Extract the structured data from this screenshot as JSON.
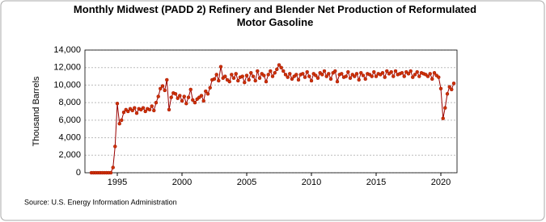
{
  "chart_data": {
    "type": "line",
    "title": "Monthly Midwest (PADD 2) Refinery and Blender Net Production of Reformulated Motor Gasoline",
    "y_label": "Thousand Barrels",
    "source": "Source: U.S. Energy Information Administration",
    "x": [
      1993,
      1993.17,
      1993.33,
      1993.5,
      1993.67,
      1993.83,
      1994,
      1994.17,
      1994.33,
      1994.5,
      1994.67,
      1994.83,
      1995,
      1995.17,
      1995.33,
      1995.5,
      1995.67,
      1995.83,
      1996,
      1996.17,
      1996.33,
      1996.5,
      1996.67,
      1996.83,
      1997,
      1997.17,
      1997.33,
      1997.5,
      1997.67,
      1997.83,
      1998,
      1998.17,
      1998.33,
      1998.5,
      1998.67,
      1998.83,
      1999,
      1999.17,
      1999.33,
      1999.5,
      1999.67,
      1999.83,
      2000,
      2000.17,
      2000.33,
      2000.5,
      2000.67,
      2000.83,
      2001,
      2001.17,
      2001.33,
      2001.5,
      2001.67,
      2001.83,
      2002,
      2002.17,
      2002.33,
      2002.5,
      2002.67,
      2002.83,
      2003,
      2003.17,
      2003.33,
      2003.5,
      2003.67,
      2003.83,
      2004,
      2004.17,
      2004.33,
      2004.5,
      2004.67,
      2004.83,
      2005,
      2005.17,
      2005.33,
      2005.5,
      2005.67,
      2005.83,
      2006,
      2006.17,
      2006.33,
      2006.5,
      2006.67,
      2006.83,
      2007,
      2007.17,
      2007.33,
      2007.5,
      2007.67,
      2007.83,
      2008,
      2008.17,
      2008.33,
      2008.5,
      2008.67,
      2008.83,
      2009,
      2009.17,
      2009.33,
      2009.5,
      2009.67,
      2009.83,
      2010,
      2010.17,
      2010.33,
      2010.5,
      2010.67,
      2010.83,
      2011,
      2011.17,
      2011.33,
      2011.5,
      2011.67,
      2011.83,
      2012,
      2012.17,
      2012.33,
      2012.5,
      2012.67,
      2012.83,
      2013,
      2013.17,
      2013.33,
      2013.5,
      2013.67,
      2013.83,
      2014,
      2014.17,
      2014.33,
      2014.5,
      2014.67,
      2014.83,
      2015,
      2015.17,
      2015.33,
      2015.5,
      2015.67,
      2015.83,
      2016,
      2016.17,
      2016.33,
      2016.5,
      2016.67,
      2016.83,
      2017,
      2017.17,
      2017.33,
      2017.5,
      2017.67,
      2017.83,
      2018,
      2018.17,
      2018.33,
      2018.5,
      2018.67,
      2018.83,
      2019,
      2019.17,
      2019.33,
      2019.5,
      2019.67,
      2019.83,
      2020,
      2020.17,
      2020.33,
      2020.5,
      2020.67,
      2020.83,
      2021
    ],
    "series": [
      {
        "line_color": "#990000",
        "color": "#cc3300",
        "values": [
          0,
          0,
          0,
          0,
          0,
          0,
          0,
          0,
          0,
          0,
          600,
          3000,
          7900,
          5600,
          6000,
          6900,
          7200,
          7000,
          7300,
          7100,
          7400,
          6800,
          7300,
          7200,
          7400,
          7000,
          7300,
          7200,
          7600,
          7100,
          8000,
          8700,
          9600,
          9900,
          9400,
          10600,
          7200,
          8600,
          9100,
          9000,
          8500,
          8800,
          8200,
          8700,
          7900,
          8600,
          9500,
          8300,
          8000,
          8400,
          8600,
          8800,
          8200,
          9300,
          9000,
          9700,
          10600,
          10700,
          11200,
          10500,
          12100,
          10800,
          11000,
          10600,
          10400,
          11200,
          10800,
          11300,
          10500,
          10900,
          11000,
          10300,
          11100,
          10600,
          11400,
          11000,
          10500,
          11600,
          10800,
          11300,
          11100,
          10400,
          11200,
          11600,
          11000,
          11400,
          11800,
          12300,
          12000,
          11600,
          11200,
          10900,
          11300,
          10700,
          11000,
          11200,
          10600,
          11200,
          11300,
          10900,
          11500,
          11000,
          10500,
          11300,
          11100,
          10800,
          11400,
          11200,
          11600,
          11000,
          11300,
          10700,
          11400,
          11600,
          10400,
          11200,
          11300,
          10900,
          11000,
          11500,
          10800,
          11200,
          11000,
          11300,
          10600,
          11400,
          11100,
          10700,
          11300,
          11200,
          11000,
          11500,
          11000,
          11300,
          11200,
          11400,
          10900,
          11600,
          11300,
          11500,
          11000,
          11600,
          11200,
          11300,
          11400,
          11000,
          11500,
          11300,
          11600,
          10900,
          11200,
          11500,
          11000,
          11400,
          11300,
          11200,
          11000,
          11300,
          10700,
          11400,
          11100,
          10900,
          9600,
          6200,
          7400,
          9000,
          9800,
          9500,
          10200
        ]
      }
    ],
    "xlim": [
      1992.5,
      2021.25
    ],
    "xticks": [
      1995,
      2000,
      2005,
      2010,
      2015,
      2020
    ],
    "ylim": [
      0,
      14000
    ],
    "yticks": [
      0,
      {
        "value": 2000,
        "label": "2,000"
      },
      {
        "value": 4000,
        "label": "4,000"
      },
      {
        "value": 6000,
        "label": "6,000"
      },
      {
        "value": 8000,
        "label": "8,000"
      },
      {
        "value": 10000,
        "label": "10,000"
      },
      {
        "value": 12000,
        "label": "12,000"
      },
      {
        "value": 14000,
        "label": "14,000"
      }
    ],
    "grid": true
  }
}
